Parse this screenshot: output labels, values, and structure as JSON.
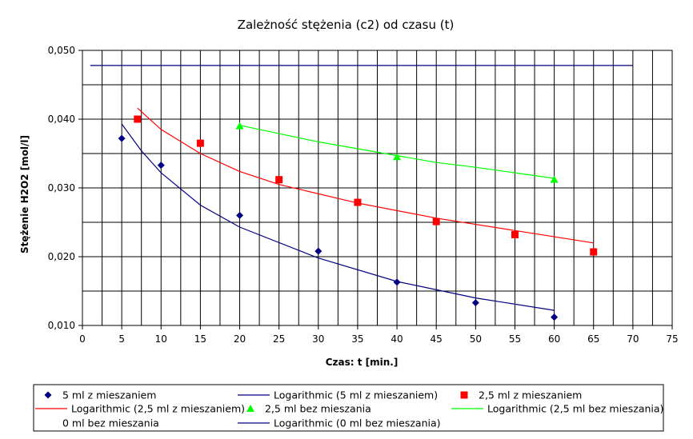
{
  "chart_data": {
    "type": "scatter",
    "title": "Zależność stężenia (c2) od czasu (t)",
    "xlabel": "Czas: t [min.]",
    "ylabel": "Stężenie H2O2 [mol/l]",
    "xlim": [
      0,
      75
    ],
    "ylim": [
      0.01,
      0.05
    ],
    "x_ticks": [
      "0",
      "5",
      "10",
      "15",
      "20",
      "25",
      "30",
      "35",
      "40",
      "45",
      "50",
      "55",
      "60",
      "65",
      "70",
      "75"
    ],
    "y_ticks": [
      "0,010",
      "0,020",
      "0,030",
      "0,040",
      "0,050"
    ],
    "grid": true,
    "legend_position": "bottom",
    "series": [
      {
        "name": "5 ml z mieszaniem",
        "kind": "points",
        "marker": "diamond",
        "color": "#000080",
        "x": [
          5,
          10,
          20,
          30,
          40,
          50,
          60
        ],
        "y": [
          0.0372,
          0.0333,
          0.026,
          0.0208,
          0.0163,
          0.0133,
          0.0112
        ]
      },
      {
        "name": "Logarithmic (5 ml z mieszaniem)",
        "kind": "trendline",
        "color": "#000080",
        "x": [
          5,
          7.5,
          10,
          15,
          20,
          30,
          40,
          50,
          60
        ],
        "y": [
          0.0393,
          0.0354,
          0.0322,
          0.0275,
          0.0243,
          0.0198,
          0.0164,
          0.014,
          0.0122
        ]
      },
      {
        "name": "2,5 ml z mieszaniem",
        "kind": "points",
        "marker": "square",
        "color": "#ff0000",
        "x": [
          7,
          15,
          25,
          35,
          45,
          55,
          65
        ],
        "y": [
          0.04,
          0.0365,
          0.0312,
          0.0279,
          0.0251,
          0.0232,
          0.0207
        ]
      },
      {
        "name": "Logarithmic (2,5 ml z mieszaniem)",
        "kind": "trendline",
        "color": "#ff0000",
        "x": [
          7,
          10,
          15,
          20,
          25,
          35,
          45,
          55,
          65
        ],
        "y": [
          0.0416,
          0.0385,
          0.035,
          0.0324,
          0.0305,
          0.0278,
          0.0256,
          0.0238,
          0.022
        ]
      },
      {
        "name": "2,5 ml bez mieszania",
        "kind": "points",
        "marker": "triangle",
        "color": "#00ff00",
        "x": [
          20,
          40,
          60
        ],
        "y": [
          0.039,
          0.0345,
          0.0312
        ]
      },
      {
        "name": "Logarithmic (2,5 ml bez mieszania)",
        "kind": "trendline",
        "color": "#00ff00",
        "x": [
          20,
          25,
          30,
          35,
          40,
          45,
          50,
          55,
          60
        ],
        "y": [
          0.0391,
          0.0379,
          0.0367,
          0.0357,
          0.0347,
          0.0337,
          0.033,
          0.0322,
          0.0314
        ]
      },
      {
        "name": "0 ml bez mieszania",
        "kind": "points",
        "marker": "none",
        "color": "#000080",
        "x": [],
        "y": []
      },
      {
        "name": "Logarithmic (0 ml bez mieszania)",
        "kind": "trendline",
        "color": "#000080",
        "x": [
          1,
          70
        ],
        "y": [
          0.0478,
          0.0478
        ]
      }
    ]
  }
}
